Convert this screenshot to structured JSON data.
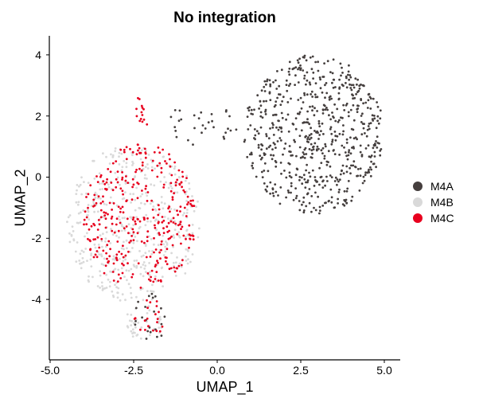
{
  "chart_data": {
    "type": "scatter",
    "title": "No integration",
    "xlabel": "UMAP_1",
    "ylabel": "UMAP_2",
    "xlim": [
      -5.0,
      5.5
    ],
    "ylim": [
      -5.8,
      4.6
    ],
    "xticks": [
      "-5.0",
      "-2.5",
      "0.0",
      "2.5",
      "5.0"
    ],
    "xtick_values": [
      -5.0,
      -2.5,
      0.0,
      2.5,
      5.0
    ],
    "yticks": [
      "4",
      "2",
      "0",
      "-2",
      "-4"
    ],
    "ytick_values": [
      4,
      2,
      0,
      -2,
      -4
    ],
    "grid": false,
    "legend_position": "right",
    "series": [
      {
        "name": "M4A",
        "color": "#453F3E",
        "approx_count": 700,
        "regions": [
          {
            "cx": 2.9,
            "cy": 1.4,
            "rx": 2.1,
            "ry": 2.6,
            "n": 640
          },
          {
            "cx": -0.5,
            "cy": 1.7,
            "rx": 1.1,
            "ry": 0.7,
            "n": 30
          },
          {
            "cx": -2.0,
            "cy": -4.6,
            "rx": 0.5,
            "ry": 0.8,
            "n": 22
          }
        ]
      },
      {
        "name": "M4B",
        "color": "#D9D9D9",
        "approx_count": 500,
        "regions": [
          {
            "cx": -2.5,
            "cy": -1.5,
            "rx": 2.0,
            "ry": 2.6,
            "n": 460
          },
          {
            "cx": -2.2,
            "cy": -4.8,
            "rx": 0.6,
            "ry": 0.6,
            "n": 40
          }
        ]
      },
      {
        "name": "M4C",
        "color": "#E8001E",
        "approx_count": 380,
        "regions": [
          {
            "cx": -2.3,
            "cy": -1.3,
            "rx": 1.7,
            "ry": 2.4,
            "n": 340
          },
          {
            "cx": -2.3,
            "cy": 2.1,
            "rx": 0.3,
            "ry": 0.5,
            "n": 14
          },
          {
            "cx": -2.0,
            "cy": -4.6,
            "rx": 0.5,
            "ry": 0.6,
            "n": 20
          }
        ]
      }
    ]
  },
  "legend": {
    "items": [
      {
        "label": "M4A",
        "color": "#453F3E"
      },
      {
        "label": "M4B",
        "color": "#D9D9D9"
      },
      {
        "label": "M4C",
        "color": "#E8001E"
      }
    ]
  }
}
